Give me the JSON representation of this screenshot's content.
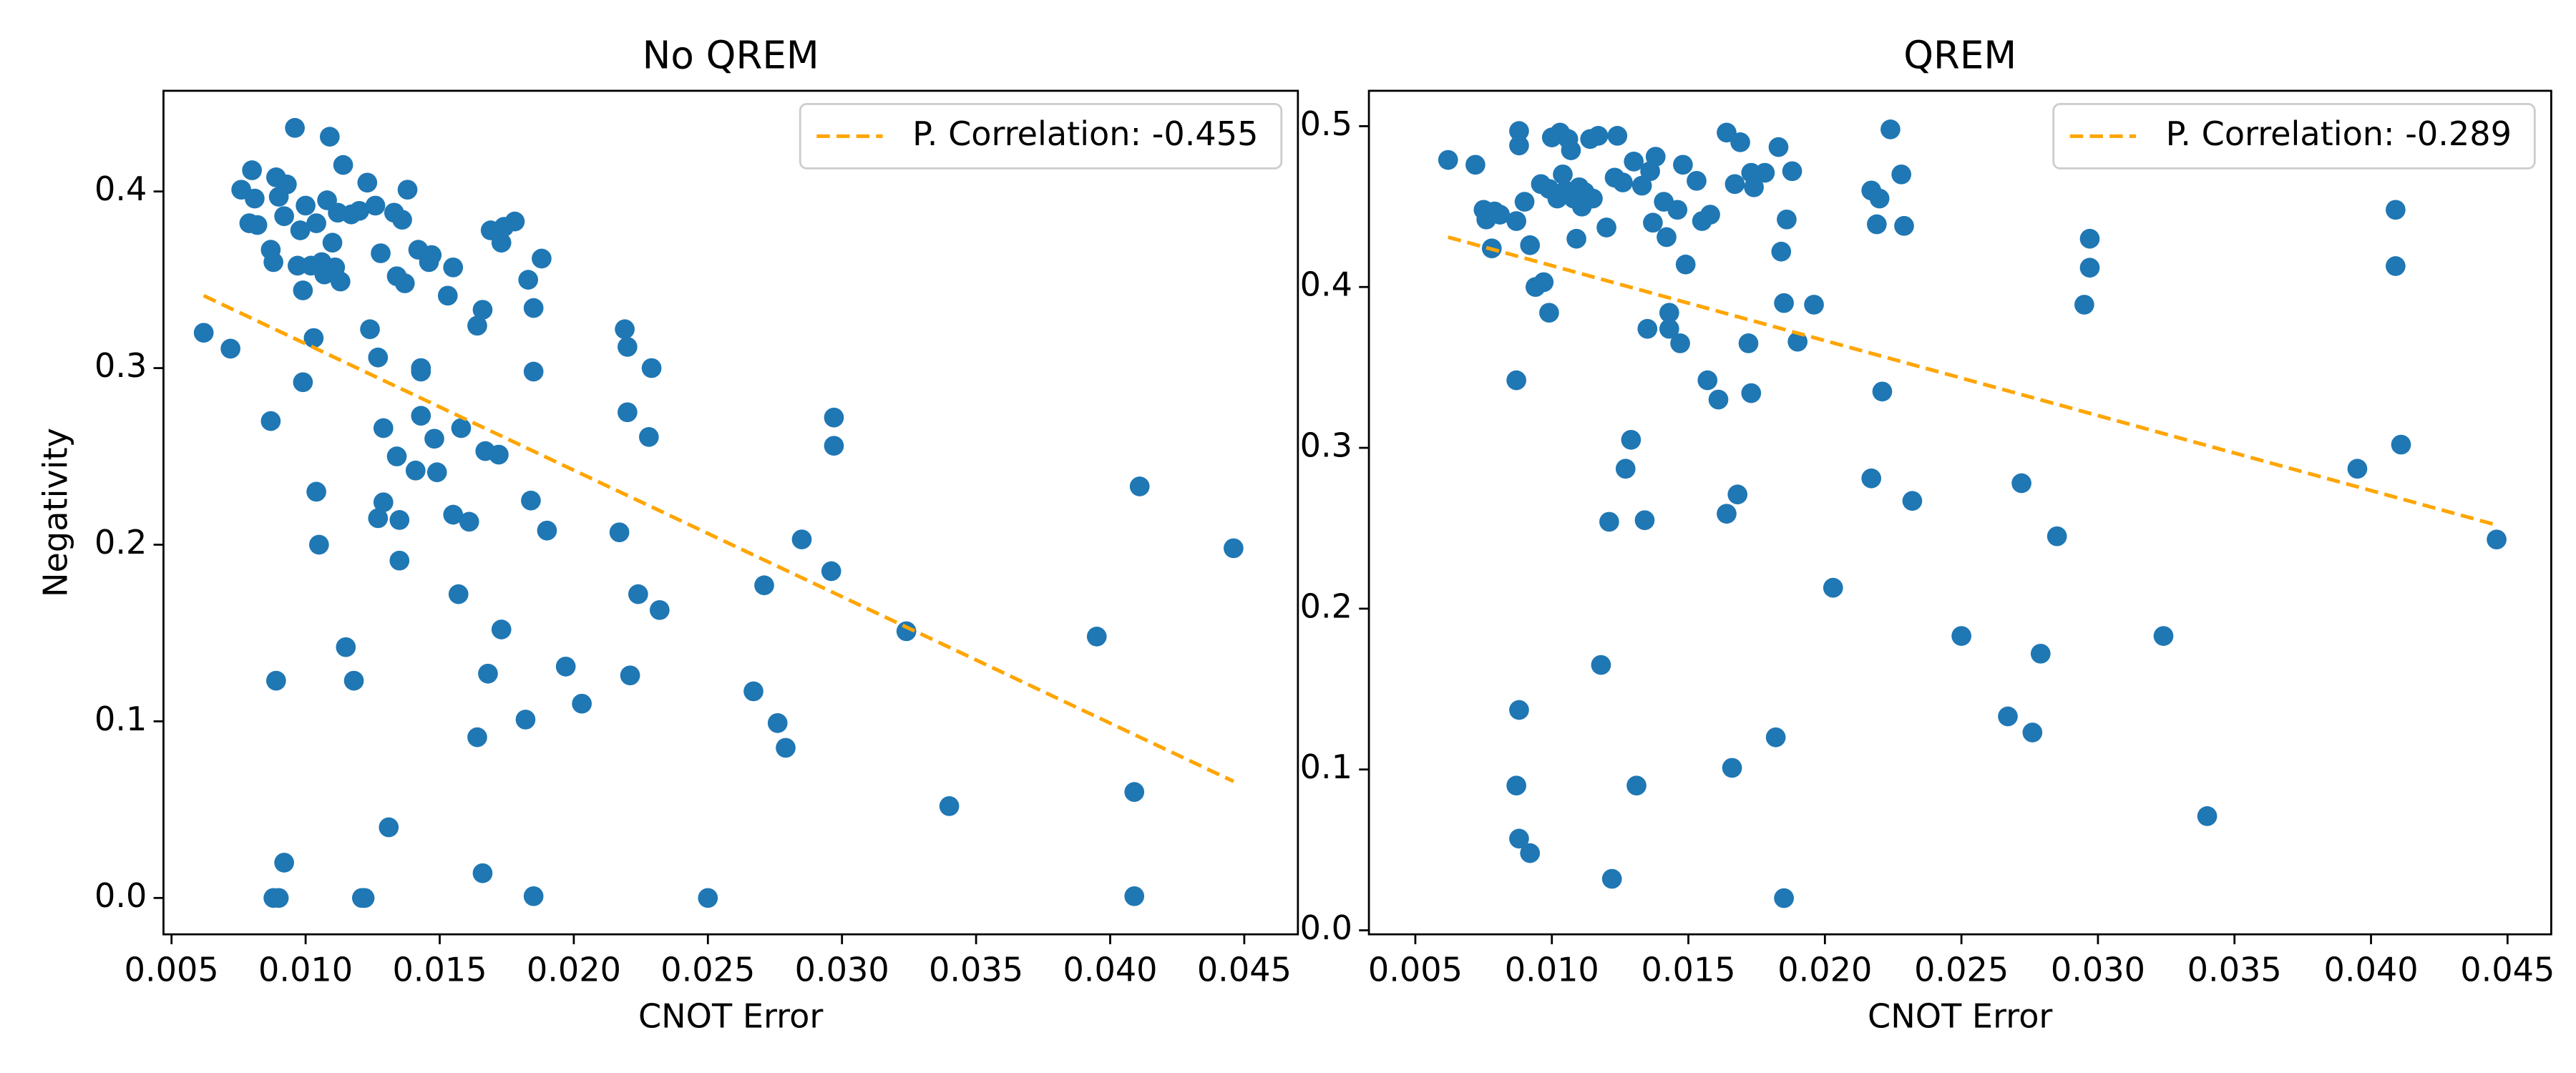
{
  "chart_data": [
    {
      "type": "scatter",
      "title": "No QREM",
      "x_label": "CNOT Error",
      "y_label": "Negativity",
      "color": "#1f77b4",
      "legend": "upper right",
      "xlim": [
        0.0047,
        0.047
      ],
      "ylim": [
        -0.0206,
        0.457
      ],
      "xticks": [
        0.005,
        {
          "value": 0.01,
          "label": "0.010"
        },
        0.015,
        {
          "value": 0.02,
          "label": "0.020"
        },
        0.025,
        {
          "value": 0.03,
          "label": "0.030"
        },
        0.035,
        {
          "value": 0.04,
          "label": "0.040"
        },
        0.045
      ],
      "yticks": [
        {
          "value": 0,
          "label": "0.0"
        },
        0.1,
        0.2,
        0.3,
        0.4
      ],
      "x": [
        0.0062,
        0.0072,
        0.0076,
        0.008,
        0.0081,
        0.0079,
        0.0082,
        0.0087,
        0.0088,
        0.009,
        0.0089,
        0.0092,
        0.0087,
        0.0088,
        0.0089,
        0.009,
        0.0092,
        0.0093,
        0.0096,
        0.0097,
        0.0098,
        0.0099,
        0.0099,
        0.01,
        0.0102,
        0.0103,
        0.0104,
        0.0105,
        0.0104,
        0.0106,
        0.0107,
        0.0108,
        0.0109,
        0.011,
        0.0111,
        0.0112,
        0.0113,
        0.0114,
        0.0115,
        0.0118,
        0.0117,
        0.012,
        0.0121,
        0.0122,
        0.0123,
        0.0124,
        0.0126,
        0.0127,
        0.0127,
        0.0128,
        0.0129,
        0.0129,
        0.0131,
        0.0133,
        0.0134,
        0.0134,
        0.0135,
        0.0135,
        0.0136,
        0.0137,
        0.0138,
        0.0141,
        0.0142,
        0.0143,
        0.0143,
        0.0143,
        0.0146,
        0.0147,
        0.0148,
        0.0149,
        0.0153,
        0.0155,
        0.0155,
        0.0157,
        0.0158,
        0.0161,
        0.0164,
        0.0164,
        0.0166,
        0.0166,
        0.0167,
        0.0168,
        0.0169,
        0.0172,
        0.0173,
        0.0173,
        0.0174,
        0.0178,
        0.0182,
        0.0183,
        0.0184,
        0.0185,
        0.0185,
        0.0185,
        0.0188,
        0.019,
        0.0197,
        0.0203,
        0.0217,
        0.0219,
        0.022,
        0.022,
        0.0221,
        0.0224,
        0.0228,
        0.0229,
        0.0232,
        0.025,
        0.0267,
        0.0271,
        0.0276,
        0.0279,
        0.0285,
        0.0296,
        0.0297,
        0.0297,
        0.0324,
        0.034,
        0.0395,
        0.0409,
        0.0409,
        0.0411,
        0.0446
      ],
      "values": [
        0.32,
        0.311,
        0.401,
        0.412,
        0.396,
        0.382,
        0.381,
        0.27,
        0.0,
        0.0,
        0.123,
        0.02,
        0.367,
        0.36,
        0.408,
        0.397,
        0.386,
        0.404,
        0.436,
        0.358,
        0.378,
        0.344,
        0.292,
        0.392,
        0.358,
        0.317,
        0.23,
        0.2,
        0.382,
        0.36,
        0.353,
        0.395,
        0.431,
        0.371,
        0.357,
        0.388,
        0.349,
        0.415,
        0.142,
        0.123,
        0.387,
        0.389,
        0.0,
        0.0,
        0.405,
        0.322,
        0.392,
        0.215,
        0.306,
        0.365,
        0.266,
        0.224,
        0.04,
        0.388,
        0.25,
        0.352,
        0.191,
        0.214,
        0.384,
        0.348,
        0.401,
        0.242,
        0.367,
        0.273,
        0.298,
        0.3,
        0.36,
        0.364,
        0.26,
        0.241,
        0.341,
        0.357,
        0.217,
        0.172,
        0.266,
        0.213,
        0.324,
        0.091,
        0.333,
        0.014,
        0.253,
        0.127,
        0.378,
        0.251,
        0.152,
        0.371,
        0.38,
        0.383,
        0.101,
        0.35,
        0.225,
        0.298,
        0.001,
        0.334,
        0.362,
        0.208,
        0.131,
        0.11,
        0.207,
        0.322,
        0.312,
        0.275,
        0.126,
        0.172,
        0.261,
        0.3,
        0.163,
        0.0,
        0.117,
        0.177,
        0.099,
        0.085,
        0.203,
        0.185,
        0.272,
        0.256,
        0.151,
        0.052,
        0.148,
        0.06,
        0.001,
        0.233,
        0.198
      ],
      "fit": {
        "name": "P. Correlation: -0.455",
        "color": "#ffa500",
        "x": [
          0.0062,
          0.0446
        ],
        "y": [
          0.341,
          0.066
        ]
      }
    },
    {
      "type": "scatter",
      "title": "QREM",
      "x_label": "CNOT Error",
      "color": "#1f77b4",
      "legend": "upper right",
      "xlim": [
        0.0033,
        0.0466
      ],
      "ylim": [
        -0.0025,
        0.522
      ],
      "xticks": [
        0.005,
        {
          "value": 0.01,
          "label": "0.010"
        },
        0.015,
        {
          "value": 0.02,
          "label": "0.020"
        },
        0.025,
        {
          "value": 0.03,
          "label": "0.030"
        },
        0.035,
        {
          "value": 0.04,
          "label": "0.040"
        },
        0.045
      ],
      "yticks": [
        {
          "value": 0,
          "label": "0.0"
        },
        0.1,
        0.2,
        0.3,
        0.4,
        0.5
      ],
      "x": [
        0.0062,
        0.0072,
        0.0075,
        0.0076,
        0.0078,
        0.0079,
        0.0081,
        0.0087,
        0.0087,
        0.0088,
        0.0088,
        0.0092,
        0.0087,
        0.0088,
        0.0088,
        0.009,
        0.0092,
        0.0094,
        0.0096,
        0.0097,
        0.0099,
        0.0099,
        0.01,
        0.0102,
        0.0103,
        0.0104,
        0.0105,
        0.0106,
        0.0107,
        0.0108,
        0.0109,
        0.011,
        0.0111,
        0.0112,
        0.0114,
        0.0115,
        0.0117,
        0.0118,
        0.012,
        0.0121,
        0.0122,
        0.0123,
        0.0124,
        0.0126,
        0.0127,
        0.0129,
        0.013,
        0.0131,
        0.0133,
        0.0134,
        0.0135,
        0.0136,
        0.0137,
        0.0138,
        0.0141,
        0.0142,
        0.0143,
        0.0143,
        0.0146,
        0.0147,
        0.0148,
        0.0149,
        0.0153,
        0.0155,
        0.0157,
        0.0158,
        0.0161,
        0.0164,
        0.0164,
        0.0166,
        0.0167,
        0.0168,
        0.0169,
        0.0172,
        0.0173,
        0.0173,
        0.0174,
        0.0178,
        0.0182,
        0.0183,
        0.0184,
        0.0185,
        0.0185,
        0.0186,
        0.0188,
        0.019,
        0.0196,
        0.0203,
        0.0217,
        0.0217,
        0.0219,
        0.022,
        0.0221,
        0.0224,
        0.0228,
        0.0229,
        0.0232,
        0.025,
        0.0267,
        0.0272,
        0.0276,
        0.0279,
        0.0285,
        0.0295,
        0.0297,
        0.0297,
        0.0324,
        0.034,
        0.0395,
        0.0409,
        0.0409,
        0.0411,
        0.0446
      ],
      "values": [
        0.479,
        0.476,
        0.448,
        0.442,
        0.424,
        0.447,
        0.445,
        0.342,
        0.09,
        0.137,
        0.057,
        0.048,
        0.441,
        0.488,
        0.497,
        0.453,
        0.426,
        0.4,
        0.464,
        0.403,
        0.384,
        0.461,
        0.493,
        0.455,
        0.496,
        0.47,
        0.46,
        0.492,
        0.485,
        0.455,
        0.43,
        0.462,
        0.45,
        0.459,
        0.492,
        0.455,
        0.494,
        0.165,
        0.437,
        0.254,
        0.032,
        0.468,
        0.494,
        0.465,
        0.287,
        0.305,
        0.478,
        0.09,
        0.463,
        0.255,
        0.374,
        0.472,
        0.44,
        0.481,
        0.453,
        0.431,
        0.384,
        0.374,
        0.448,
        0.365,
        0.476,
        0.414,
        0.466,
        0.441,
        0.342,
        0.445,
        0.33,
        0.259,
        0.496,
        0.101,
        0.464,
        0.271,
        0.49,
        0.365,
        0.471,
        0.334,
        0.462,
        0.471,
        0.12,
        0.487,
        0.422,
        0.02,
        0.39,
        0.442,
        0.472,
        0.366,
        0.389,
        0.213,
        0.281,
        0.46,
        0.439,
        0.455,
        0.335,
        0.498,
        0.47,
        0.438,
        0.267,
        0.183,
        0.133,
        0.278,
        0.123,
        0.172,
        0.245,
        0.389,
        0.43,
        0.412,
        0.183,
        0.071,
        0.287,
        0.413,
        0.448,
        0.302,
        0.243
      ],
      "fit": {
        "name": "P. Correlation: -0.289",
        "color": "#ffa500",
        "x": [
          0.0062,
          0.0446
        ],
        "y": [
          0.431,
          0.252
        ]
      }
    }
  ]
}
